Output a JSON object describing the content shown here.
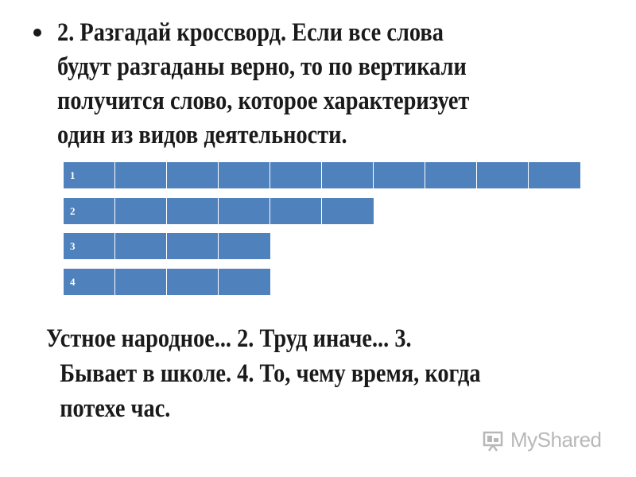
{
  "task": {
    "lines": [
      "2. Разгадай кроссворд. Если все слова",
      "будут разгаданы верно, то по вертикали",
      "получится слово, которое характеризует",
      "один из видов деятельности."
    ]
  },
  "crossword": {
    "rows": [
      {
        "number": "1",
        "cells": 10
      },
      {
        "number": "2",
        "cells": 6
      },
      {
        "number": "3",
        "cells": 4
      },
      {
        "number": "4",
        "cells": 4
      }
    ],
    "cell_color": "#4f81bd"
  },
  "clues": {
    "lines": [
      "Устное народное... 2. Труд иначе... 3.",
      "Бывает в школе. 4. То, чему время, когда",
      "потехе час."
    ]
  },
  "watermark": {
    "text": "MyShared",
    "icon": "projector-screen-icon"
  }
}
